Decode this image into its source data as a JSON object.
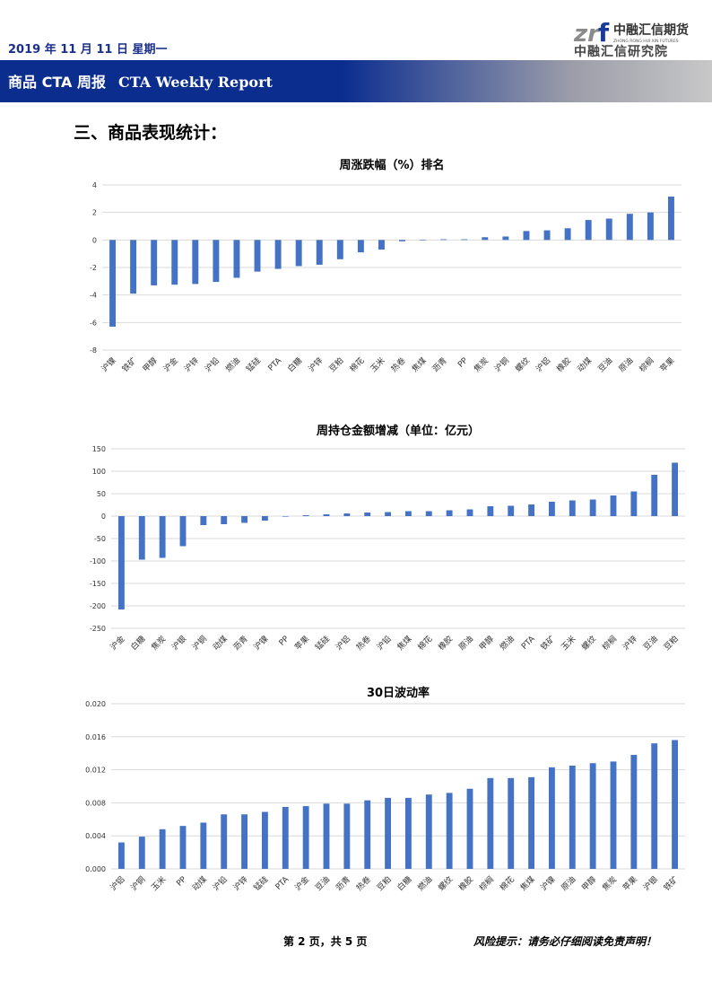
{
  "header": {
    "date": "2019 年 11 月 11 日  星期一",
    "logo": {
      "brand": "中融汇信期货",
      "english": "ZHONG RONG HUI XIN FUTURES",
      "institute": "中融汇信研究院"
    },
    "report_title_cn": "商品 CTA 周报",
    "report_title_en": "CTA Weekly Report"
  },
  "section_title": "三、商品表现统计：",
  "colors": {
    "bar": "#4472c4",
    "banner": "#0b2d8e",
    "grid": "#d9d9d9"
  },
  "chart_data": [
    {
      "type": "bar",
      "title": "周涨跌幅（%）排名",
      "categories": [
        "沪镍",
        "铁矿",
        "甲醇",
        "沪金",
        "沪锌",
        "沪铅",
        "燃油",
        "锰硅",
        "PTA",
        "白糖",
        "沪锌",
        "豆粕",
        "棉花",
        "玉米",
        "热卷",
        "焦煤",
        "沥青",
        "PP",
        "焦炭",
        "沪铜",
        "螺纹",
        "沪铝",
        "橡胶",
        "动煤",
        "豆油",
        "原油",
        "棕榈",
        "苹果"
      ],
      "values": [
        -6.3,
        -3.9,
        -3.3,
        -3.25,
        -3.2,
        -3.05,
        -2.75,
        -2.3,
        -2.1,
        -1.9,
        -1.8,
        -1.4,
        -0.9,
        -0.7,
        -0.1,
        0,
        0.05,
        0.05,
        0.2,
        0.25,
        0.65,
        0.7,
        0.85,
        1.45,
        1.55,
        1.9,
        2.0,
        3.15
      ],
      "yticks": [
        4,
        2,
        0,
        -2,
        -4,
        -6,
        -8
      ],
      "ylim": [
        -8,
        4
      ]
    },
    {
      "type": "bar",
      "title": "周持仓金额增减（单位：亿元）",
      "categories": [
        "沪金",
        "白糖",
        "焦炭",
        "沪银",
        "沪铜",
        "动煤",
        "沥青",
        "沪镍",
        "PP",
        "苹果",
        "锰硅",
        "沪铝",
        "热卷",
        "沪铅",
        "焦煤",
        "棉花",
        "橡胶",
        "原油",
        "甲醇",
        "燃油",
        "PTA",
        "铁矿",
        "玉米",
        "螺纹",
        "棕榈",
        "沪锌",
        "豆油",
        "豆粕"
      ],
      "values": [
        -208,
        -97,
        -93,
        -67,
        -20,
        -18,
        -15,
        -10,
        0,
        2,
        4,
        6,
        8,
        9,
        11,
        11,
        13,
        15,
        22,
        23,
        26,
        32,
        35,
        37,
        46,
        55,
        92,
        119
      ],
      "yticks": [
        150,
        100,
        50,
        0,
        -50,
        -100,
        -150,
        -200,
        -250
      ],
      "ylim": [
        -250,
        150
      ]
    },
    {
      "type": "bar",
      "title": "30日波动率",
      "categories": [
        "沪铝",
        "沪铜",
        "玉米",
        "PP",
        "动煤",
        "沪铅",
        "沪锌",
        "锰硅",
        "PTA",
        "沪金",
        "豆油",
        "沥青",
        "热卷",
        "豆粕",
        "白糖",
        "燃油",
        "螺纹",
        "橡胶",
        "棕榈",
        "棉花",
        "焦煤",
        "沪镍",
        "原油",
        "甲醇",
        "焦炭",
        "苹果",
        "沪银",
        "铁矿"
      ],
      "values": [
        0.0032,
        0.0039,
        0.0048,
        0.0052,
        0.0056,
        0.0066,
        0.0066,
        0.0069,
        0.0075,
        0.0076,
        0.0079,
        0.0079,
        0.0083,
        0.0086,
        0.0086,
        0.009,
        0.0092,
        0.0097,
        0.011,
        0.011,
        0.0111,
        0.0123,
        0.0125,
        0.0128,
        0.013,
        0.0138,
        0.0152,
        0.0156
      ],
      "yticks": [
        "0.020",
        "0.016",
        "0.012",
        "0.008",
        "0.004",
        "0.000"
      ],
      "ylim": [
        0,
        0.02
      ]
    }
  ],
  "footer": {
    "page": "第 2 页，共 5 页",
    "risk": "风险提示：请务必仔细阅读免责声明！"
  }
}
